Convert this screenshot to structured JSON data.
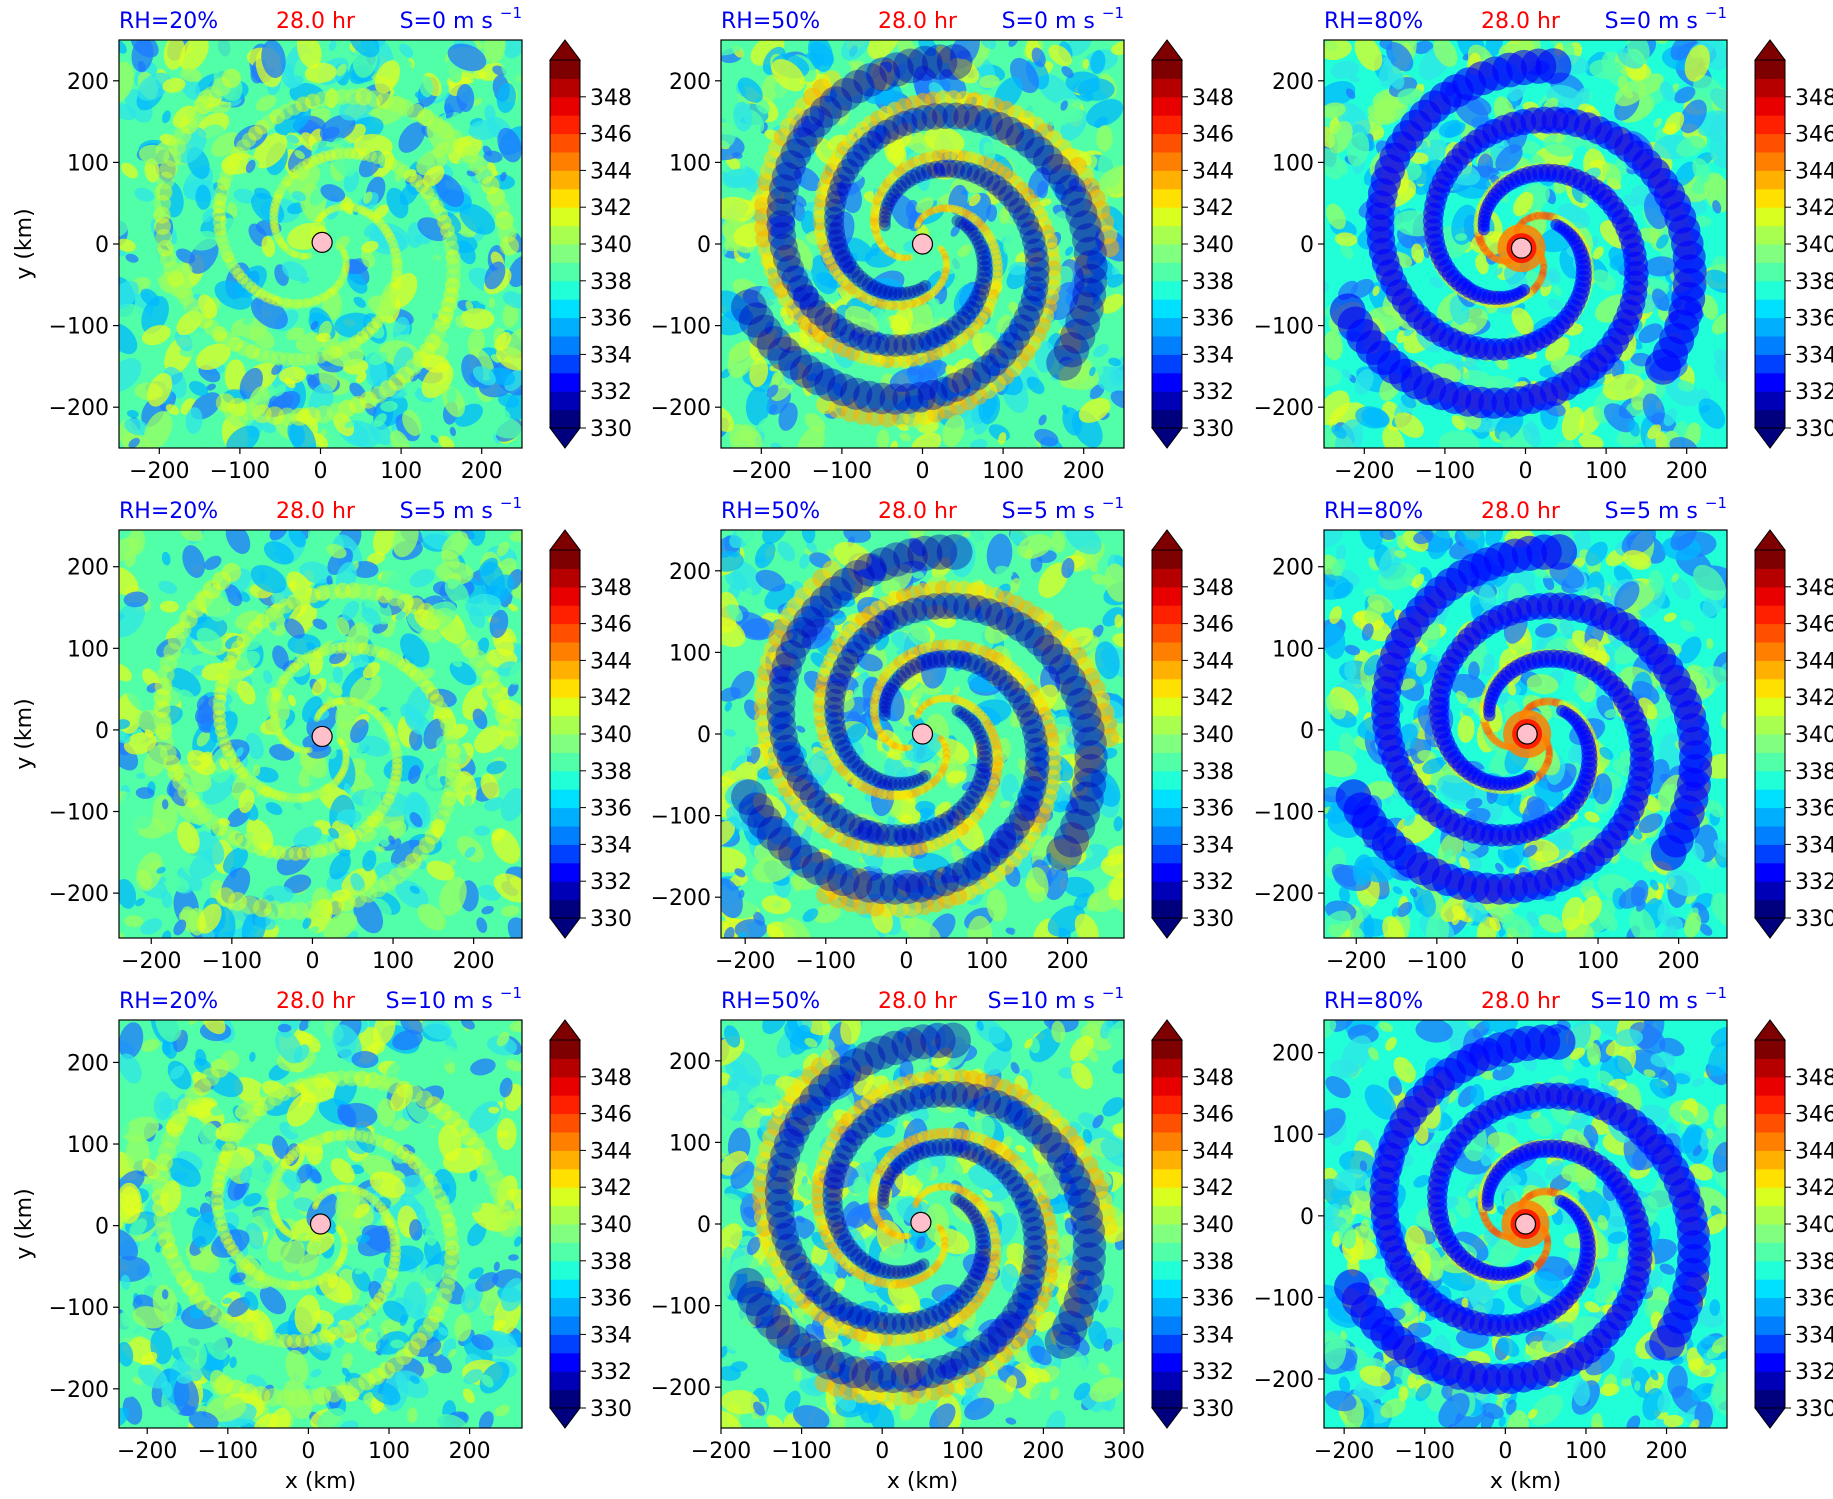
{
  "figure": {
    "colormap": [
      "#00007f",
      "#0000b6",
      "#0000ff",
      "#0040ff",
      "#0080ff",
      "#00b0ff",
      "#00e0ff",
      "#20ffd8",
      "#50ffa8",
      "#80ff80",
      "#a8ff50",
      "#d8ff20",
      "#ffe000",
      "#ffb000",
      "#ff8000",
      "#ff5000",
      "#ff2000",
      "#e80000",
      "#b60000",
      "#7f0000"
    ],
    "bg_colors": [
      "#1e78ff",
      "#00b8ff",
      "#2ee6e6",
      "#50ffa8",
      "#98ff60",
      "#e0ff20"
    ]
  },
  "chart_data": [
    {
      "type": "heatmap",
      "quantity": "theta_e",
      "rh_label": "RH=20%",
      "time_label": "28.0 hr",
      "shear_label": "S=0 m s",
      "shear_exp": "−1",
      "xlabel": "",
      "ylabel": "y (km)",
      "xlim": [
        -250,
        250
      ],
      "ylim": [
        -250,
        250
      ],
      "xticks": [
        -200,
        -100,
        0,
        100,
        200
      ],
      "yticks": [
        -200,
        -100,
        0,
        100,
        200
      ],
      "center": [
        2,
        2
      ],
      "levels_range": [
        330,
        350
      ],
      "colorbar_ticks": [
        330,
        332,
        334,
        336,
        338,
        340,
        342,
        344,
        346,
        348
      ],
      "pattern": "weak",
      "background_level": 338
    },
    {
      "type": "heatmap",
      "quantity": "theta_e",
      "rh_label": "RH=50%",
      "time_label": "28.0 hr",
      "shear_label": "S=0 m s",
      "shear_exp": "−1",
      "xlabel": "",
      "ylabel": "",
      "xlim": [
        -250,
        250
      ],
      "ylim": [
        -250,
        250
      ],
      "xticks": [
        -200,
        -100,
        0,
        100,
        200
      ],
      "yticks": [
        -200,
        -100,
        0,
        100,
        200
      ],
      "center": [
        0,
        0
      ],
      "levels_range": [
        330,
        350
      ],
      "colorbar_ticks": [
        330,
        332,
        334,
        336,
        338,
        340,
        342,
        344,
        346,
        348
      ],
      "pattern": "moderate",
      "background_level": 338
    },
    {
      "type": "heatmap",
      "quantity": "theta_e",
      "rh_label": "RH=80%",
      "time_label": "28.0 hr",
      "shear_label": "S=0 m s",
      "shear_exp": "−1",
      "xlabel": "",
      "ylabel": "",
      "xlim": [
        -250,
        250
      ],
      "ylim": [
        -250,
        250
      ],
      "xticks": [
        -200,
        -100,
        0,
        100,
        200
      ],
      "yticks": [
        -200,
        -100,
        0,
        100,
        200
      ],
      "center": [
        -5,
        -5
      ],
      "levels_range": [
        330,
        350
      ],
      "colorbar_ticks": [
        330,
        332,
        334,
        336,
        338,
        340,
        342,
        344,
        346,
        348
      ],
      "pattern": "strong",
      "background_level": 337
    },
    {
      "type": "heatmap",
      "quantity": "theta_e",
      "rh_label": "RH=20%",
      "time_label": "28.0 hr",
      "shear_label": "S=5 m s",
      "shear_exp": "−1",
      "xlabel": "",
      "ylabel": "y (km)",
      "xlim": [
        -240,
        260
      ],
      "ylim": [
        -255,
        245
      ],
      "xticks": [
        -200,
        -100,
        0,
        100,
        200
      ],
      "yticks": [
        -200,
        -100,
        0,
        100,
        200
      ],
      "center": [
        12,
        -8
      ],
      "levels_range": [
        330,
        350
      ],
      "colorbar_ticks": [
        330,
        332,
        334,
        336,
        338,
        340,
        342,
        344,
        346,
        348
      ],
      "pattern": "weak",
      "background_level": 338
    },
    {
      "type": "heatmap",
      "quantity": "theta_e",
      "rh_label": "RH=50%",
      "time_label": "28.0 hr",
      "shear_label": "S=5 m s",
      "shear_exp": "−1",
      "xlabel": "",
      "ylabel": "",
      "xlim": [
        -230,
        270
      ],
      "ylim": [
        -250,
        250
      ],
      "xticks": [
        -200,
        -100,
        0,
        100,
        200
      ],
      "yticks": [
        -200,
        -100,
        0,
        100,
        200
      ],
      "center": [
        20,
        0
      ],
      "levels_range": [
        330,
        350
      ],
      "colorbar_ticks": [
        330,
        332,
        334,
        336,
        338,
        340,
        342,
        344,
        346,
        348
      ],
      "pattern": "moderate",
      "background_level": 338
    },
    {
      "type": "heatmap",
      "quantity": "theta_e",
      "rh_label": "RH=80%",
      "time_label": "28.0 hr",
      "shear_label": "S=5 m s",
      "shear_exp": "−1",
      "xlabel": "",
      "ylabel": "",
      "xlim": [
        -240,
        260
      ],
      "ylim": [
        -255,
        245
      ],
      "xticks": [
        -200,
        -100,
        0,
        100,
        200
      ],
      "yticks": [
        -200,
        -100,
        0,
        100,
        200
      ],
      "center": [
        12,
        -5
      ],
      "levels_range": [
        330,
        350
      ],
      "colorbar_ticks": [
        330,
        332,
        334,
        336,
        338,
        340,
        342,
        344,
        346,
        348
      ],
      "pattern": "strong",
      "background_level": 337
    },
    {
      "type": "heatmap",
      "quantity": "theta_e",
      "rh_label": "RH=20%",
      "time_label": "28.0 hr",
      "shear_label": "S=10 m s",
      "shear_exp": "−1",
      "xlabel": "x (km)",
      "ylabel": "y (km)",
      "xlim": [
        -235,
        265
      ],
      "ylim": [
        -248,
        252
      ],
      "xticks": [
        -200,
        -100,
        0,
        100,
        200
      ],
      "yticks": [
        -200,
        -100,
        0,
        100,
        200
      ],
      "center": [
        15,
        2
      ],
      "levels_range": [
        330,
        350
      ],
      "colorbar_ticks": [
        330,
        332,
        334,
        336,
        338,
        340,
        342,
        344,
        346,
        348
      ],
      "pattern": "weak",
      "background_level": 338
    },
    {
      "type": "heatmap",
      "quantity": "theta_e",
      "rh_label": "RH=50%",
      "time_label": "28.0 hr",
      "shear_label": "S=10 m s",
      "shear_exp": "−1",
      "xlabel": "x (km)",
      "ylabel": "",
      "xlim": [
        -200,
        300
      ],
      "ylim": [
        -250,
        250
      ],
      "xticks": [
        -200,
        -100,
        0,
        100,
        200,
        300
      ],
      "yticks": [
        -200,
        -100,
        0,
        100,
        200
      ],
      "center": [
        48,
        2
      ],
      "levels_range": [
        330,
        350
      ],
      "colorbar_ticks": [
        330,
        332,
        334,
        336,
        338,
        340,
        342,
        344,
        346,
        348
      ],
      "pattern": "moderate",
      "background_level": 338
    },
    {
      "type": "heatmap",
      "quantity": "theta_e",
      "rh_label": "RH=80%",
      "time_label": "28.0 hr",
      "shear_label": "S=10 m s",
      "shear_exp": "−1",
      "xlabel": "x (km)",
      "ylabel": "",
      "xlim": [
        -225,
        275
      ],
      "ylim": [
        -260,
        240
      ],
      "xticks": [
        -200,
        -100,
        0,
        100,
        200
      ],
      "yticks": [
        -200,
        -100,
        0,
        100,
        200
      ],
      "center": [
        25,
        -10
      ],
      "levels_range": [
        330,
        350
      ],
      "colorbar_ticks": [
        330,
        332,
        334,
        336,
        338,
        340,
        342,
        344,
        346,
        348
      ],
      "pattern": "strong",
      "background_level": 337
    }
  ]
}
